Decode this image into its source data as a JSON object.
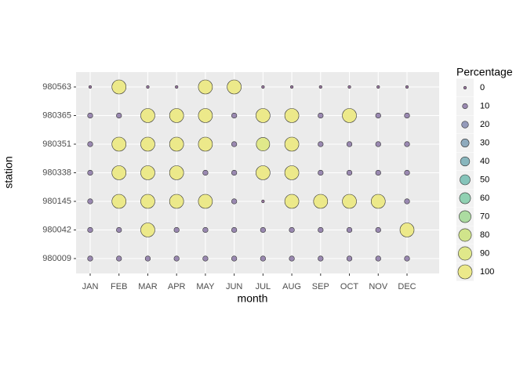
{
  "chart_data": {
    "type": "bubble",
    "x_label": "month",
    "y_label": "station",
    "categories": [
      "JAN",
      "FEB",
      "MAR",
      "APR",
      "MAY",
      "JUN",
      "JUL",
      "AUG",
      "SEP",
      "OCT",
      "NOV",
      "DEC"
    ],
    "y_categories": [
      "980563",
      "980365",
      "980351",
      "980338",
      "980145",
      "980042",
      "980009"
    ],
    "values": [
      [
        0,
        100,
        0,
        0,
        100,
        100,
        0,
        0,
        0,
        0,
        0,
        0
      ],
      [
        10,
        10,
        100,
        100,
        100,
        10,
        100,
        100,
        10,
        100,
        10,
        10
      ],
      [
        10,
        100,
        100,
        100,
        100,
        10,
        90,
        100,
        10,
        10,
        10,
        10
      ],
      [
        10,
        100,
        100,
        100,
        10,
        10,
        100,
        100,
        10,
        10,
        10,
        10
      ],
      [
        10,
        100,
        100,
        100,
        100,
        10,
        0,
        100,
        100,
        100,
        100,
        10
      ],
      [
        10,
        10,
        100,
        10,
        10,
        10,
        10,
        10,
        10,
        10,
        10,
        100
      ],
      [
        10,
        10,
        10,
        10,
        10,
        10,
        10,
        10,
        10,
        10,
        10,
        10
      ]
    ],
    "legend": {
      "title": "Percentage",
      "values": [
        0,
        10,
        20,
        30,
        40,
        50,
        60,
        70,
        80,
        90,
        100
      ],
      "colors": [
        "#98769f",
        "#9a89b1",
        "#949aba",
        "#8eaabd",
        "#88b6bd",
        "#85c4ba",
        "#90d1b2",
        "#acdca1",
        "#d0e48b",
        "#e0e88a",
        "#ece98a"
      ]
    },
    "grid": true
  }
}
